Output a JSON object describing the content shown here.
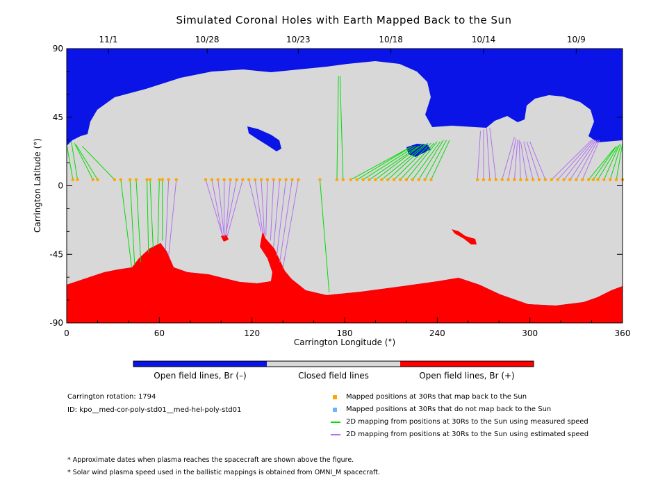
{
  "title": "Simulated Coronal Holes with Earth Mapped Back to the Sun",
  "chart_data": {
    "type": "map",
    "xlabel": "Carrington Longitude (°)",
    "ylabel": "Carrington Latitude (°)",
    "xlim": [
      0,
      360
    ],
    "ylim": [
      -90,
      90
    ],
    "x_ticks": [
      0,
      60,
      120,
      180,
      240,
      300,
      360
    ],
    "x_tick_labels": [
      "0",
      "60",
      "120",
      "180",
      "240",
      "300",
      "360"
    ],
    "y_ticks": [
      90,
      45,
      0,
      -45,
      -90
    ],
    "y_tick_labels": [
      "90",
      "45",
      "0",
      "-45",
      "-90"
    ],
    "top_axis": {
      "labels": [
        "11/1",
        "10/28",
        "10/23",
        "10/18",
        "10/14",
        "10/9"
      ],
      "longitudes": [
        27,
        91,
        150,
        210,
        270,
        330
      ]
    },
    "regions": {
      "north_open_field": "#0a14e6",
      "closed_field": "#d8d8d8",
      "south_open_field": "#ff0000"
    },
    "colorbar": {
      "colors": [
        "#0a14e6",
        "#d8d8d8",
        "#ff0000"
      ],
      "labels": [
        "Open field lines, Br (–)",
        "Closed field lines",
        "Open field lines, Br (+)"
      ]
    },
    "mapped_points": {
      "color": "#ffa500",
      "latitude": 4,
      "longitudes": [
        4,
        7,
        17,
        20,
        31,
        35,
        41,
        45,
        52,
        54,
        60,
        62,
        66,
        71,
        90,
        94,
        98,
        102,
        106,
        110,
        114,
        118,
        122,
        126,
        130,
        134,
        138,
        142,
        146,
        150,
        164,
        175,
        179,
        184,
        188,
        192,
        196,
        200,
        204,
        208,
        212,
        216,
        220,
        224,
        228,
        232,
        236,
        266,
        270,
        274,
        278,
        282,
        286,
        290,
        294,
        298,
        302,
        306,
        310,
        314,
        318,
        322,
        326,
        330,
        334,
        338,
        341,
        344,
        348,
        352,
        356,
        360
      ]
    },
    "mappings_measured": {
      "color": "#00dd00",
      "lines": [
        [
          4,
          4,
          0,
          27
        ],
        [
          7,
          4,
          3,
          29
        ],
        [
          17,
          4,
          5,
          28
        ],
        [
          20,
          4,
          6,
          27
        ],
        [
          31,
          4,
          10,
          26
        ],
        [
          35,
          4,
          42,
          -53
        ],
        [
          41,
          4,
          44,
          -52
        ],
        [
          45,
          4,
          48,
          -50
        ],
        [
          52,
          4,
          53,
          -44
        ],
        [
          54,
          4,
          56,
          -41
        ],
        [
          60,
          4,
          59,
          -38
        ],
        [
          62,
          4,
          62,
          -36
        ],
        [
          164,
          4,
          170,
          -70
        ],
        [
          175,
          4,
          176,
          72
        ],
        [
          179,
          4,
          177,
          72
        ],
        [
          184,
          4,
          222,
          25
        ],
        [
          188,
          4,
          224,
          26
        ],
        [
          192,
          4,
          226,
          26
        ],
        [
          196,
          4,
          228,
          26
        ],
        [
          200,
          4,
          230,
          27
        ],
        [
          204,
          4,
          232,
          27
        ],
        [
          208,
          4,
          234,
          28
        ],
        [
          212,
          4,
          236,
          28
        ],
        [
          216,
          4,
          238,
          28
        ],
        [
          220,
          4,
          240,
          29
        ],
        [
          224,
          4,
          242,
          29
        ],
        [
          228,
          4,
          244,
          30
        ],
        [
          232,
          4,
          246,
          30
        ],
        [
          236,
          4,
          248,
          30
        ],
        [
          338,
          4,
          355,
          25
        ],
        [
          341,
          4,
          356,
          26
        ],
        [
          344,
          4,
          357,
          26
        ],
        [
          348,
          4,
          358,
          27
        ],
        [
          352,
          4,
          359,
          27
        ],
        [
          356,
          4,
          360,
          28
        ]
      ]
    },
    "mappings_estimated": {
      "color": "#b070f0",
      "lines": [
        [
          66,
          4,
          64,
          -42
        ],
        [
          71,
          4,
          66,
          -46
        ],
        [
          90,
          4,
          101,
          -33
        ],
        [
          94,
          4,
          101,
          -33
        ],
        [
          98,
          4,
          102,
          -33
        ],
        [
          102,
          4,
          102,
          -34
        ],
        [
          106,
          4,
          103,
          -33
        ],
        [
          110,
          4,
          103,
          -32
        ],
        [
          114,
          4,
          104,
          -33
        ],
        [
          118,
          4,
          126,
          -30
        ],
        [
          122,
          4,
          127,
          -31
        ],
        [
          126,
          4,
          128,
          -32
        ],
        [
          130,
          4,
          129,
          -33
        ],
        [
          134,
          4,
          132,
          -36
        ],
        [
          138,
          4,
          134,
          -40
        ],
        [
          142,
          4,
          136,
          -46
        ],
        [
          146,
          4,
          138,
          -50
        ],
        [
          150,
          4,
          140,
          -54
        ],
        [
          266,
          4,
          268,
          36
        ],
        [
          270,
          4,
          270,
          37
        ],
        [
          274,
          4,
          272,
          38
        ],
        [
          278,
          4,
          274,
          38
        ],
        [
          282,
          4,
          290,
          32
        ],
        [
          286,
          4,
          291,
          31
        ],
        [
          290,
          4,
          292,
          30
        ],
        [
          294,
          4,
          293,
          30
        ],
        [
          298,
          4,
          294,
          29
        ],
        [
          302,
          4,
          296,
          29
        ],
        [
          306,
          4,
          298,
          29
        ],
        [
          310,
          4,
          300,
          29
        ],
        [
          314,
          4,
          340,
          30
        ],
        [
          318,
          4,
          341,
          30
        ],
        [
          322,
          4,
          342,
          30
        ],
        [
          326,
          4,
          343,
          30
        ],
        [
          330,
          4,
          344,
          30
        ],
        [
          334,
          4,
          345,
          30
        ]
      ]
    },
    "legend": [
      {
        "marker": "square",
        "color": "#ffa500",
        "label": "Mapped positions at 30Rs that map back to the Sun"
      },
      {
        "marker": "square",
        "color": "#66b3ff",
        "label": "Mapped positions at 30Rs that do not map back to the Sun"
      },
      {
        "marker": "line",
        "color": "#00dd00",
        "label": "2D mapping from positions at 30Rs to the Sun using measured speed"
      },
      {
        "marker": "line",
        "color": "#b070f0",
        "label": "2D mapping from positions at 30Rs to the Sun using estimated speed"
      }
    ]
  },
  "info": {
    "rotation": "Carrington rotation: 1794",
    "id": "ID: kpo__med-cor-poly-std01__med-hel-poly-std01"
  },
  "notes": [
    "* Approximate dates when plasma reaches the spacecraft are shown above the figure.",
    "* Solar wind plasma speed used in the ballistic mappings is obtained from OMNI_M spacecraft."
  ]
}
